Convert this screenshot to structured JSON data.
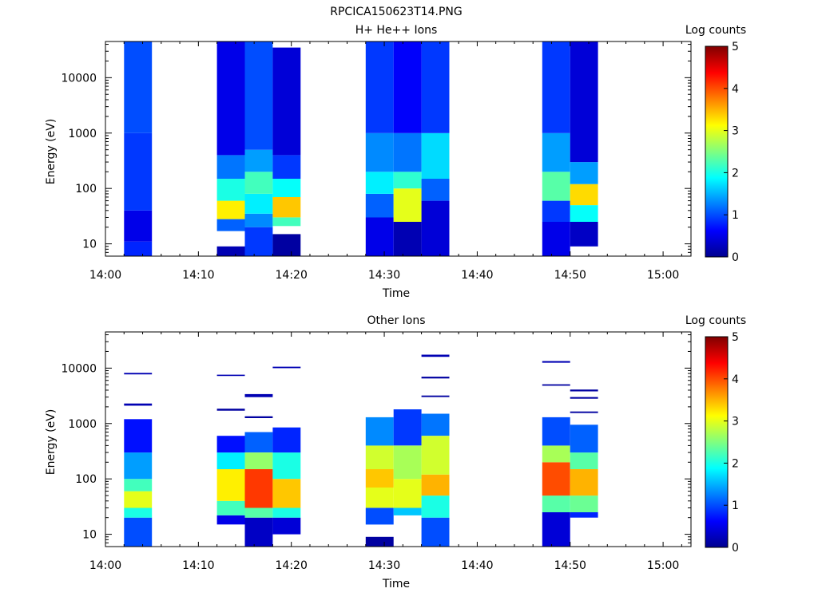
{
  "figure": {
    "title": "RPCICA150623T14.PNG"
  },
  "chart_data": [
    {
      "type": "heatmap",
      "title": "H+ He++ Ions",
      "xlabel": "Time",
      "ylabel": "Energy (eV)",
      "yscale": "log",
      "xlim": [
        "14:00",
        "15:03"
      ],
      "ylim": [
        6,
        45000
      ],
      "x_ticks": [
        "14:00",
        "14:10",
        "14:20",
        "14:30",
        "14:40",
        "14:50",
        "15:00"
      ],
      "y_ticks": [
        "10",
        "100",
        "1000",
        "10000"
      ],
      "colorbar": {
        "label": "Log counts",
        "range": [
          0,
          5
        ],
        "ticks": [
          "0",
          "1",
          "2",
          "3",
          "4",
          "5"
        ]
      },
      "columns": [
        {
          "time_start": "14:02",
          "time_end": "14:05",
          "levels": [
            {
              "energy_range": [
                6,
                11
              ],
              "log_counts": 0.8
            },
            {
              "energy_range": [
                11,
                40
              ],
              "log_counts": 0.5
            },
            {
              "energy_range": [
                40,
                1000
              ],
              "log_counts": 0.9
            },
            {
              "energy_range": [
                1000,
                45000
              ],
              "log_counts": 1.0
            }
          ]
        },
        {
          "time_start": "14:12",
          "time_end": "14:15",
          "levels": [
            {
              "energy_range": [
                6,
                9
              ],
              "log_counts": 0.2
            },
            {
              "energy_range": [
                17,
                28
              ],
              "log_counts": 1.1
            },
            {
              "energy_range": [
                28,
                60
              ],
              "log_counts": 3.2
            },
            {
              "energy_range": [
                60,
                150
              ],
              "log_counts": 2.0
            },
            {
              "energy_range": [
                150,
                400
              ],
              "log_counts": 1.2
            },
            {
              "energy_range": [
                400,
                45000
              ],
              "log_counts": 0.5
            }
          ]
        },
        {
          "time_start": "14:15",
          "time_end": "14:18",
          "levels": [
            {
              "energy_range": [
                6,
                20
              ],
              "log_counts": 0.9
            },
            {
              "energy_range": [
                20,
                35
              ],
              "log_counts": 1.3
            },
            {
              "energy_range": [
                35,
                80
              ],
              "log_counts": 1.8
            },
            {
              "energy_range": [
                80,
                200
              ],
              "log_counts": 2.2
            },
            {
              "energy_range": [
                200,
                500
              ],
              "log_counts": 1.4
            },
            {
              "energy_range": [
                500,
                45000
              ],
              "log_counts": 1.0
            }
          ]
        },
        {
          "time_start": "14:18",
          "time_end": "14:21",
          "levels": [
            {
              "energy_range": [
                6,
                15
              ],
              "log_counts": 0.1
            },
            {
              "energy_range": [
                21,
                30
              ],
              "log_counts": 2.2
            },
            {
              "energy_range": [
                30,
                70
              ],
              "log_counts": 3.4
            },
            {
              "energy_range": [
                70,
                150
              ],
              "log_counts": 1.9
            },
            {
              "energy_range": [
                150,
                400
              ],
              "log_counts": 0.9
            },
            {
              "energy_range": [
                400,
                35000
              ],
              "log_counts": 0.4
            }
          ]
        },
        {
          "time_start": "14:28",
          "time_end": "14:31",
          "levels": [
            {
              "energy_range": [
                6,
                30
              ],
              "log_counts": 0.5
            },
            {
              "energy_range": [
                30,
                80
              ],
              "log_counts": 1.1
            },
            {
              "energy_range": [
                80,
                200
              ],
              "log_counts": 1.8
            },
            {
              "energy_range": [
                200,
                1000
              ],
              "log_counts": 1.3
            },
            {
              "energy_range": [
                1000,
                45000
              ],
              "log_counts": 0.9
            }
          ]
        },
        {
          "time_start": "14:31",
          "time_end": "14:34",
          "levels": [
            {
              "energy_range": [
                6,
                25
              ],
              "log_counts": 0.2
            },
            {
              "energy_range": [
                25,
                100
              ],
              "log_counts": 3.0
            },
            {
              "energy_range": [
                100,
                200
              ],
              "log_counts": 2.1
            },
            {
              "energy_range": [
                200,
                1000
              ],
              "log_counts": 1.2
            },
            {
              "energy_range": [
                1000,
                45000
              ],
              "log_counts": 0.6
            }
          ]
        },
        {
          "time_start": "14:34",
          "time_end": "14:37",
          "levels": [
            {
              "energy_range": [
                6,
                60
              ],
              "log_counts": 0.4
            },
            {
              "energy_range": [
                60,
                150
              ],
              "log_counts": 1.1
            },
            {
              "energy_range": [
                150,
                1000
              ],
              "log_counts": 1.7
            },
            {
              "energy_range": [
                1000,
                45000
              ],
              "log_counts": 0.9
            }
          ]
        },
        {
          "time_start": "14:47",
          "time_end": "14:50",
          "levels": [
            {
              "energy_range": [
                6,
                25
              ],
              "log_counts": 0.5
            },
            {
              "energy_range": [
                25,
                60
              ],
              "log_counts": 0.9
            },
            {
              "energy_range": [
                60,
                200
              ],
              "log_counts": 2.3
            },
            {
              "energy_range": [
                200,
                1000
              ],
              "log_counts": 1.4
            },
            {
              "energy_range": [
                1000,
                45000
              ],
              "log_counts": 0.9
            }
          ]
        },
        {
          "time_start": "14:50",
          "time_end": "14:53",
          "levels": [
            {
              "energy_range": [
                9,
                25
              ],
              "log_counts": 0.3
            },
            {
              "energy_range": [
                25,
                50
              ],
              "log_counts": 1.9
            },
            {
              "energy_range": [
                50,
                120
              ],
              "log_counts": 3.3
            },
            {
              "energy_range": [
                120,
                300
              ],
              "log_counts": 1.4
            },
            {
              "energy_range": [
                300,
                45000
              ],
              "log_counts": 0.4
            }
          ]
        }
      ]
    },
    {
      "type": "heatmap",
      "title": "Other Ions",
      "xlabel": "Time",
      "ylabel": "Energy (eV)",
      "yscale": "log",
      "xlim": [
        "14:00",
        "15:03"
      ],
      "ylim": [
        6,
        45000
      ],
      "x_ticks": [
        "14:00",
        "14:10",
        "14:20",
        "14:30",
        "14:40",
        "14:50",
        "15:00"
      ],
      "y_ticks": [
        "10",
        "100",
        "1000",
        "10000"
      ],
      "colorbar": {
        "label": "Log counts",
        "range": [
          0,
          5
        ],
        "ticks": [
          "0",
          "1",
          "2",
          "3",
          "4",
          "5"
        ]
      },
      "columns": [
        {
          "time_start": "14:02",
          "time_end": "14:05",
          "levels": [
            {
              "energy_range": [
                6,
                20
              ],
              "log_counts": 1.0
            },
            {
              "energy_range": [
                20,
                30
              ],
              "log_counts": 2.0
            },
            {
              "energy_range": [
                30,
                60
              ],
              "log_counts": 3.0
            },
            {
              "energy_range": [
                60,
                100
              ],
              "log_counts": 2.2
            },
            {
              "energy_range": [
                100,
                300
              ],
              "log_counts": 1.4
            },
            {
              "energy_range": [
                300,
                1200
              ],
              "log_counts": 0.7
            },
            {
              "energy_range": [
                2100,
                2300
              ],
              "log_counts": 0.2
            },
            {
              "energy_range": [
                7700,
                8200
              ],
              "log_counts": 0.2
            }
          ]
        },
        {
          "time_start": "14:12",
          "time_end": "14:15",
          "levels": [
            {
              "energy_range": [
                15,
                22
              ],
              "log_counts": 0.5
            },
            {
              "energy_range": [
                22,
                40
              ],
              "log_counts": 2.2
            },
            {
              "energy_range": [
                40,
                150
              ],
              "log_counts": 3.2
            },
            {
              "energy_range": [
                150,
                300
              ],
              "log_counts": 1.8
            },
            {
              "energy_range": [
                300,
                600
              ],
              "log_counts": 0.7
            },
            {
              "energy_range": [
                1700,
                1850
              ],
              "log_counts": 0.1
            },
            {
              "energy_range": [
                7200,
                7600
              ],
              "log_counts": 0.2
            }
          ]
        },
        {
          "time_start": "14:15",
          "time_end": "14:18",
          "levels": [
            {
              "energy_range": [
                6,
                20
              ],
              "log_counts": 0.3
            },
            {
              "energy_range": [
                20,
                30
              ],
              "log_counts": 2.3
            },
            {
              "energy_range": [
                30,
                150
              ],
              "log_counts": 4.1
            },
            {
              "energy_range": [
                150,
                300
              ],
              "log_counts": 2.6
            },
            {
              "energy_range": [
                300,
                700
              ],
              "log_counts": 1.1
            },
            {
              "energy_range": [
                1250,
                1350
              ],
              "log_counts": 0.1
            },
            {
              "energy_range": [
                3000,
                3400
              ],
              "log_counts": 0.2
            }
          ]
        },
        {
          "time_start": "14:18",
          "time_end": "14:21",
          "levels": [
            {
              "energy_range": [
                10,
                20
              ],
              "log_counts": 0.4
            },
            {
              "energy_range": [
                20,
                30
              ],
              "log_counts": 2.0
            },
            {
              "energy_range": [
                30,
                100
              ],
              "log_counts": 3.4
            },
            {
              "energy_range": [
                100,
                300
              ],
              "log_counts": 2.0
            },
            {
              "energy_range": [
                300,
                850
              ],
              "log_counts": 0.8
            },
            {
              "energy_range": [
                10000,
                10600
              ],
              "log_counts": 0.2
            }
          ]
        },
        {
          "time_start": "14:28",
          "time_end": "14:31",
          "levels": [
            {
              "energy_range": [
                6,
                9
              ],
              "log_counts": 0.1
            },
            {
              "energy_range": [
                15,
                30
              ],
              "log_counts": 1.0
            },
            {
              "energy_range": [
                30,
                70
              ],
              "log_counts": 3.0
            },
            {
              "energy_range": [
                70,
                150
              ],
              "log_counts": 3.4
            },
            {
              "energy_range": [
                150,
                400
              ],
              "log_counts": 2.9
            },
            {
              "energy_range": [
                400,
                1300
              ],
              "log_counts": 1.3
            }
          ]
        },
        {
          "time_start": "14:31",
          "time_end": "14:34",
          "levels": [
            {
              "energy_range": [
                22,
                30
              ],
              "log_counts": 1.6
            },
            {
              "energy_range": [
                30,
                100
              ],
              "log_counts": 3.0
            },
            {
              "energy_range": [
                100,
                400
              ],
              "log_counts": 2.7
            },
            {
              "energy_range": [
                400,
                1800
              ],
              "log_counts": 0.9
            }
          ]
        },
        {
          "time_start": "14:34",
          "time_end": "14:37",
          "levels": [
            {
              "energy_range": [
                6,
                20
              ],
              "log_counts": 1.0
            },
            {
              "energy_range": [
                20,
                50
              ],
              "log_counts": 2.0
            },
            {
              "energy_range": [
                50,
                120
              ],
              "log_counts": 3.5
            },
            {
              "energy_range": [
                120,
                600
              ],
              "log_counts": 2.9
            },
            {
              "energy_range": [
                600,
                1500
              ],
              "log_counts": 1.2
            },
            {
              "energy_range": [
                3000,
                3200
              ],
              "log_counts": 0.1
            },
            {
              "energy_range": [
                6500,
                7000
              ],
              "log_counts": 0.1
            },
            {
              "energy_range": [
                16000,
                17500
              ],
              "log_counts": 0.2
            }
          ]
        },
        {
          "time_start": "14:47",
          "time_end": "14:50",
          "levels": [
            {
              "energy_range": [
                6,
                25
              ],
              "log_counts": 0.4
            },
            {
              "energy_range": [
                25,
                50
              ],
              "log_counts": 2.3
            },
            {
              "energy_range": [
                50,
                200
              ],
              "log_counts": 4.0
            },
            {
              "energy_range": [
                200,
                400
              ],
              "log_counts": 2.7
            },
            {
              "energy_range": [
                400,
                1300
              ],
              "log_counts": 1.0
            },
            {
              "energy_range": [
                4800,
                5100
              ],
              "log_counts": 0.1
            },
            {
              "energy_range": [
                12500,
                13400
              ],
              "log_counts": 0.2
            }
          ]
        },
        {
          "time_start": "14:50",
          "time_end": "14:53",
          "levels": [
            {
              "energy_range": [
                20,
                25
              ],
              "log_counts": 0.8
            },
            {
              "energy_range": [
                25,
                50
              ],
              "log_counts": 2.4
            },
            {
              "energy_range": [
                50,
                150
              ],
              "log_counts": 3.5
            },
            {
              "energy_range": [
                150,
                300
              ],
              "log_counts": 2.3
            },
            {
              "energy_range": [
                300,
                950
              ],
              "log_counts": 1.1
            },
            {
              "energy_range": [
                1550,
                1650
              ],
              "log_counts": 0.1
            },
            {
              "energy_range": [
                2800,
                3000
              ],
              "log_counts": 0.1
            },
            {
              "energy_range": [
                3800,
                4100
              ],
              "log_counts": 0.1
            }
          ]
        }
      ]
    }
  ]
}
